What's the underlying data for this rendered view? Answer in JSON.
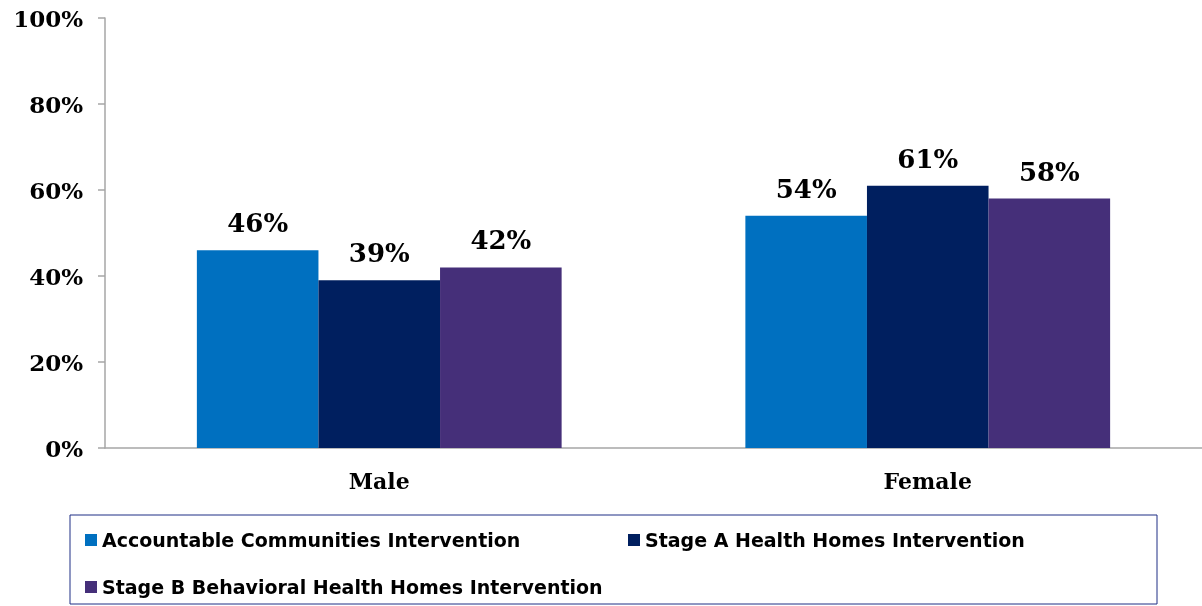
{
  "chart_data": {
    "type": "bar",
    "categories": [
      "Male",
      "Female"
    ],
    "series": [
      {
        "name": "Accountable Communities Intervention",
        "color": "#0070c0",
        "values": [
          46,
          54
        ],
        "value_labels": [
          "46%",
          "54%"
        ]
      },
      {
        "name": "Stage A Health Homes Intervention",
        "color": "#001f5f",
        "values": [
          39,
          61
        ],
        "value_labels": [
          "39%",
          "61%"
        ]
      },
      {
        "name": "Stage B Behavioral Health Homes Intervention",
        "color": "#452f79",
        "values": [
          42,
          58
        ],
        "value_labels": [
          "42%",
          "58%"
        ]
      }
    ],
    "ylim": [
      0,
      100
    ],
    "yticks": [
      {
        "value": 0,
        "label": "0%"
      },
      {
        "value": 20,
        "label": "20%"
      },
      {
        "value": 40,
        "label": "40%"
      },
      {
        "value": 60,
        "label": "60%"
      },
      {
        "value": 80,
        "label": "80%"
      },
      {
        "value": 100,
        "label": "100%"
      }
    ],
    "legend": "bottom"
  }
}
